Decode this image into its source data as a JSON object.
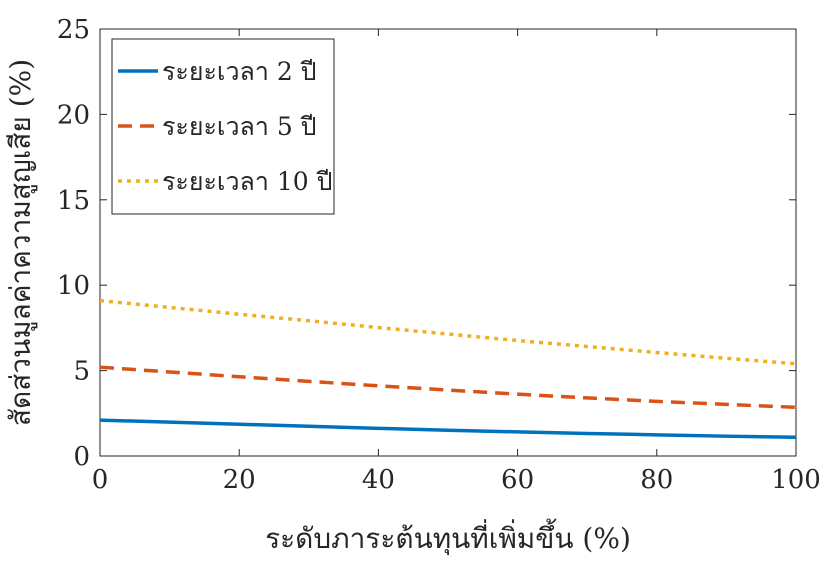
{
  "chart_data": {
    "type": "line",
    "title": "",
    "xlabel": "ระดับภาระต้นทุนที่เพิ่มขึ้น (%)",
    "ylabel": "สัดส่วนมูลค่าความสูญเสีย (%)",
    "xlim": [
      0,
      100
    ],
    "ylim": [
      0,
      25
    ],
    "xticks": [
      0,
      20,
      40,
      60,
      80,
      100
    ],
    "yticks": [
      0,
      5,
      10,
      15,
      20,
      25
    ],
    "grid": false,
    "legend_position": "top-left",
    "x": [
      0,
      10,
      20,
      30,
      40,
      50,
      60,
      70,
      80,
      90,
      100
    ],
    "series": [
      {
        "name": "ระยะเวลา 2 ปี",
        "style": "solid",
        "color": "#0072BD",
        "values": [
          2.1,
          1.98,
          1.86,
          1.74,
          1.62,
          1.51,
          1.41,
          1.32,
          1.24,
          1.16,
          1.1
        ]
      },
      {
        "name": "ระยะเวลา 5 ปี",
        "style": "dashed",
        "color": "#D95319",
        "values": [
          5.2,
          4.92,
          4.64,
          4.37,
          4.11,
          3.86,
          3.62,
          3.4,
          3.2,
          3.02,
          2.85
        ]
      },
      {
        "name": "ระยะเวลา 10 ปี",
        "style": "dotted",
        "color": "#EDB120",
        "values": [
          9.1,
          8.7,
          8.3,
          7.92,
          7.52,
          7.14,
          6.76,
          6.41,
          6.06,
          5.72,
          5.4
        ]
      }
    ]
  }
}
